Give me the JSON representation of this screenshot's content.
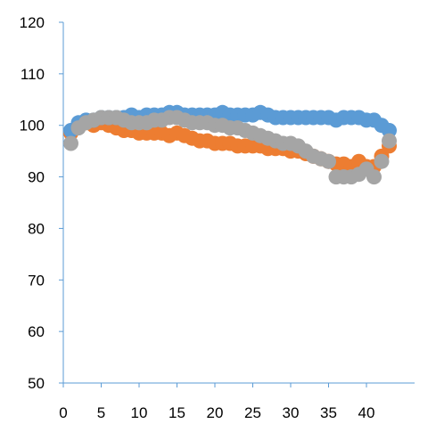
{
  "chart_data": {
    "type": "scatter",
    "title": "",
    "xlabel": "",
    "ylabel": "",
    "xlim": [
      0,
      44
    ],
    "ylim": [
      50,
      120
    ],
    "x_ticks": [
      0,
      5,
      10,
      15,
      20,
      25,
      30,
      35,
      40
    ],
    "y_ticks": [
      50,
      60,
      70,
      80,
      90,
      100,
      110,
      120
    ],
    "x_tick_labels": [
      "0",
      "5",
      "10",
      "15",
      "20",
      "25",
      "30",
      "35",
      "40"
    ],
    "y_tick_labels": [
      "50",
      "60",
      "70",
      "80",
      "90",
      "100",
      "110",
      "120"
    ],
    "grid": false,
    "legend": "none",
    "series": [
      {
        "color": "#ed7d31",
        "x": [
          1,
          2,
          3,
          4,
          5,
          6,
          7,
          8,
          9,
          10,
          11,
          12,
          13,
          14,
          15,
          16,
          17,
          18,
          19,
          20,
          21,
          22,
          23,
          24,
          25,
          26,
          27,
          28,
          29,
          30,
          31,
          32,
          33,
          34,
          35,
          36,
          37,
          38,
          39,
          40,
          41,
          42,
          43
        ],
        "y": [
          98.5,
          100,
          100.5,
          100,
          100.5,
          100,
          99.5,
          99,
          99,
          98.5,
          98.5,
          98.5,
          98.5,
          98,
          98.5,
          98,
          97.5,
          97,
          97,
          96.5,
          96.5,
          96.5,
          96,
          96,
          96,
          96,
          95.5,
          95.5,
          95.5,
          95,
          95,
          94.5,
          94,
          93.5,
          93,
          92.5,
          92.5,
          92,
          93,
          92,
          92,
          94,
          96
        ]
      },
      {
        "color": "#5b9bd5",
        "x": [
          1,
          2,
          3,
          4,
          5,
          6,
          7,
          8,
          9,
          10,
          11,
          12,
          13,
          14,
          15,
          16,
          17,
          18,
          19,
          20,
          21,
          22,
          23,
          24,
          25,
          26,
          27,
          28,
          29,
          30,
          31,
          32,
          33,
          34,
          35,
          36,
          37,
          38,
          39,
          40,
          41,
          42,
          43
        ],
        "y": [
          99,
          100.5,
          101,
          101,
          101.5,
          101.5,
          101.5,
          101.5,
          102,
          101.5,
          102,
          102,
          102,
          102.5,
          102.5,
          102,
          102,
          102,
          102,
          102,
          102.5,
          102,
          102,
          102,
          102,
          102.5,
          102,
          101.5,
          101.5,
          101.5,
          101.5,
          101.5,
          101.5,
          101.5,
          101.5,
          101,
          101.5,
          101.5,
          101.5,
          101,
          101,
          100,
          99
        ]
      },
      {
        "color": "#a5a5a5",
        "x": [
          1,
          2,
          3,
          4,
          5,
          6,
          7,
          8,
          9,
          10,
          11,
          12,
          13,
          14,
          15,
          16,
          17,
          18,
          19,
          20,
          21,
          22,
          23,
          24,
          25,
          26,
          27,
          28,
          29,
          30,
          31,
          32,
          33,
          34,
          35,
          36,
          37,
          38,
          39,
          40,
          41,
          42,
          43
        ],
        "y": [
          96.5,
          99.5,
          100.5,
          101,
          101.5,
          101.5,
          101.5,
          101,
          100.5,
          100.5,
          100.5,
          101,
          101,
          101.5,
          101.5,
          101,
          100.5,
          100.5,
          100.5,
          100,
          100,
          99.5,
          99.5,
          99,
          98.5,
          98,
          97.5,
          97,
          96.5,
          96.5,
          96,
          95,
          94,
          93.5,
          93,
          90,
          90,
          90,
          90.5,
          91.5,
          90,
          93,
          97
        ]
      }
    ]
  }
}
